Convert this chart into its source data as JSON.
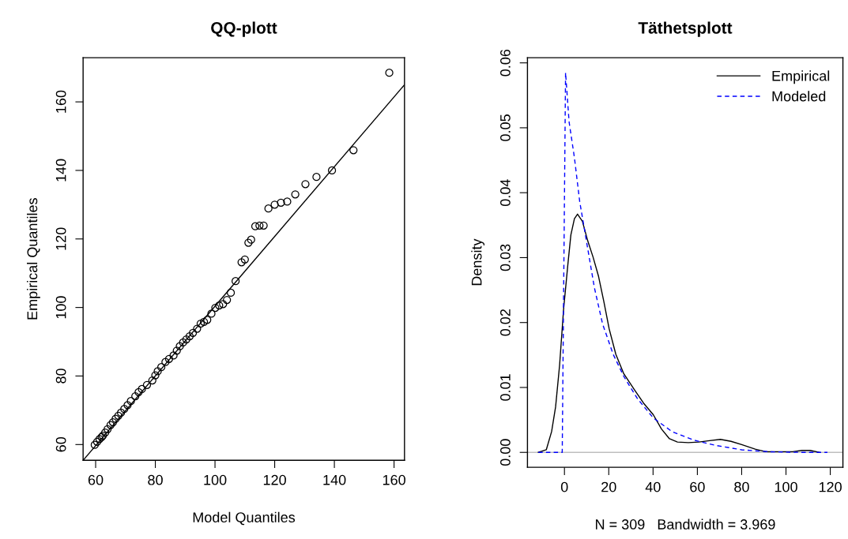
{
  "chart_data": [
    {
      "type": "scatter",
      "title": "QQ-plott",
      "xlabel": "Model Quantiles",
      "ylabel": "Empirical Quantiles",
      "xlim": [
        55.8,
        163.5
      ],
      "ylim": [
        55.4,
        172.9
      ],
      "xticks": [
        60,
        80,
        100,
        120,
        140,
        160
      ],
      "yticks": [
        60,
        80,
        100,
        120,
        140,
        160
      ],
      "grid": false,
      "legend": false,
      "series": [
        {
          "type": "scatter",
          "marker": "circle",
          "color": "#000000",
          "x": [
            59.7,
            60.5,
            61.3,
            62.0,
            62.4,
            63.2,
            64.0,
            65.0,
            65.8,
            66.7,
            67.6,
            68.5,
            69.6,
            70.7,
            71.8,
            73.3,
            74.4,
            75.5,
            77.2,
            79.0,
            80.0,
            80.8,
            82.0,
            83.4,
            84.6,
            86.1,
            87.2,
            88.2,
            89.3,
            90.4,
            91.5,
            92.6,
            94.0,
            95.2,
            96.3,
            97.4,
            98.8,
            100.1,
            101.4,
            102.7,
            104.0,
            105.3,
            106.9,
            108.9,
            110.0,
            111.2,
            112.1,
            113.5,
            114.9,
            116.3,
            117.9,
            120.0,
            122.1,
            124.2,
            126.9,
            130.3,
            134.0,
            139.2,
            146.4,
            158.4
          ],
          "values": [
            59.9,
            60.8,
            61.6,
            62.2,
            62.6,
            63.5,
            64.5,
            65.7,
            66.5,
            67.5,
            68.4,
            69.3,
            70.4,
            71.5,
            72.7,
            74.1,
            75.3,
            76.2,
            77.4,
            78.7,
            80.2,
            81.4,
            82.6,
            84.1,
            85.0,
            86.0,
            87.4,
            88.7,
            89.8,
            90.7,
            91.6,
            92.6,
            93.8,
            95.3,
            95.8,
            96.4,
            98.2,
            99.9,
            100.6,
            101.0,
            102.2,
            104.3,
            107.7,
            113.2,
            114.0,
            118.9,
            119.8,
            123.7,
            123.9,
            123.9,
            128.9,
            130.0,
            130.6,
            130.9,
            133.0,
            136.0,
            138.1,
            140.0,
            145.9,
            168.5
          ]
        },
        {
          "type": "line",
          "line_style": "solid",
          "color": "#000000",
          "x": [
            55.8,
            163.5
          ],
          "values": [
            55.4,
            165.0
          ]
        }
      ]
    },
    {
      "type": "line",
      "title": "Täthetsplott",
      "xlabel": "N = 309   Bandwidth = 3.969",
      "ylabel": "Density",
      "xlim": [
        -16.7,
        125.7
      ],
      "ylim": [
        -0.0023,
        0.0608
      ],
      "xticks": [
        0,
        20,
        40,
        60,
        80,
        100,
        120
      ],
      "yticks": [
        {
          "value": 0,
          "label": "0.00"
        },
        {
          "value": 0.01,
          "label": "0.01"
        },
        {
          "value": 0.02,
          "label": "0.02"
        },
        {
          "value": 0.03,
          "label": "0.03"
        },
        {
          "value": 0.04,
          "label": "0.04"
        },
        {
          "value": 0.05,
          "label": "0.05"
        },
        {
          "value": 0.06,
          "label": "0.06"
        }
      ],
      "grid": false,
      "legend": "top right",
      "ref_lines": [
        {
          "axis": "y",
          "value": 0,
          "color": "#bebebe",
          "line_style": "solid"
        }
      ],
      "series": [
        {
          "name": "Empirical",
          "color": "#000000",
          "line_style": "solid",
          "x": [
            -11.8,
            -8.2,
            -5.8,
            -4.0,
            -2.2,
            -0.4,
            1.5,
            2.9,
            4.5,
            5.9,
            8.1,
            10.5,
            12.9,
            15.4,
            17.8,
            20.2,
            23.2,
            26.8,
            31.7,
            35.9,
            40.1,
            43.8,
            47.4,
            51.0,
            55.9,
            60.7,
            65.5,
            70.4,
            75.2,
            80.0,
            86.1,
            90.9,
            97.0,
            103.0,
            107.2,
            110.9,
            115.1
          ],
          "values": [
            0,
            0.0004,
            0.0032,
            0.007,
            0.0134,
            0.022,
            0.0288,
            0.0335,
            0.036,
            0.0367,
            0.0356,
            0.0326,
            0.0301,
            0.0271,
            0.0232,
            0.019,
            0.0151,
            0.0121,
            0.0096,
            0.0075,
            0.0058,
            0.0036,
            0.0021,
            0.0016,
            0.0015,
            0.0016,
            0.0018,
            0.002,
            0.0017,
            0.0012,
            0.0005,
            0.0001,
            0.0001,
            0.0001,
            0.0003,
            0.0003,
            0
          ]
        },
        {
          "name": "Modeled",
          "color": "#0000ff",
          "line_style": "dashed",
          "x": [
            -11.8,
            -1.0,
            0.5,
            2.1,
            4.5,
            6.9,
            9.9,
            13.5,
            17.2,
            22.0,
            26.8,
            32.9,
            40.1,
            48.6,
            58.3,
            67.9,
            80.0,
            92.1,
            106.6,
            118.7
          ],
          "values": [
            0,
            0,
            0.0585,
            0.0509,
            0.0454,
            0.0386,
            0.0326,
            0.0254,
            0.0198,
            0.0151,
            0.0117,
            0.0083,
            0.0053,
            0.0032,
            0.0019,
            0.0011,
            0.0004,
            0.0001,
            0,
            0
          ]
        }
      ]
    }
  ]
}
